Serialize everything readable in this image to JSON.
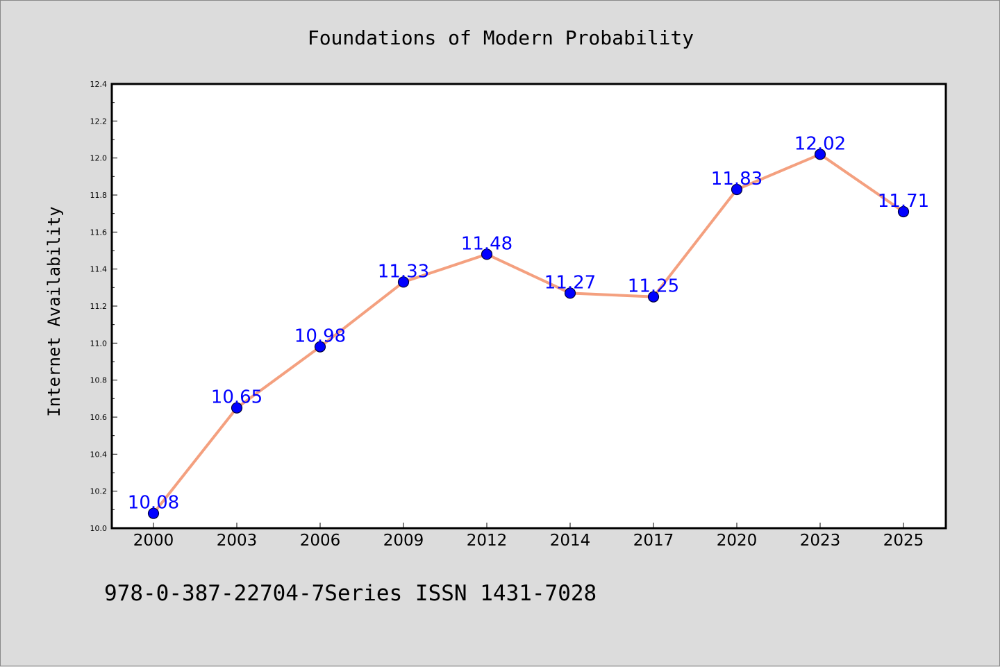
{
  "chart_data": {
    "type": "line",
    "title": "Foundations of Modern Probability",
    "xlabel": "",
    "ylabel": "Internet Availability",
    "categories": [
      "2000",
      "2003",
      "2006",
      "2009",
      "2012",
      "2014",
      "2017",
      "2020",
      "2023",
      "2025"
    ],
    "series": [
      {
        "values": [
          10.08,
          10.65,
          10.98,
          11.33,
          11.48,
          11.27,
          11.25,
          11.83,
          12.02,
          11.71
        ]
      }
    ],
    "data_labels": [
      "10.08",
      "10.65",
      "10.98",
      "11.33",
      "11.48",
      "11.27",
      "11.25",
      "11.83",
      "12.02",
      "11.71"
    ],
    "yticks": [
      "10.0",
      "10.2",
      "10.4",
      "10.6",
      "10.8",
      "11.0",
      "11.2",
      "11.4",
      "11.6",
      "11.8",
      "12.0",
      "12.2",
      "12.4"
    ],
    "ylim": [
      10.0,
      12.4
    ],
    "grid": false,
    "legend": "none",
    "colors": {
      "line": "#f4a07f",
      "marker": "#0000ff",
      "marker_edge": "#000033",
      "label": "#0000ff",
      "background": "#dcdcdc",
      "plot_background": "#ffffff"
    }
  },
  "footer": "978-0-387-22704-7Series ISSN 1431-7028"
}
